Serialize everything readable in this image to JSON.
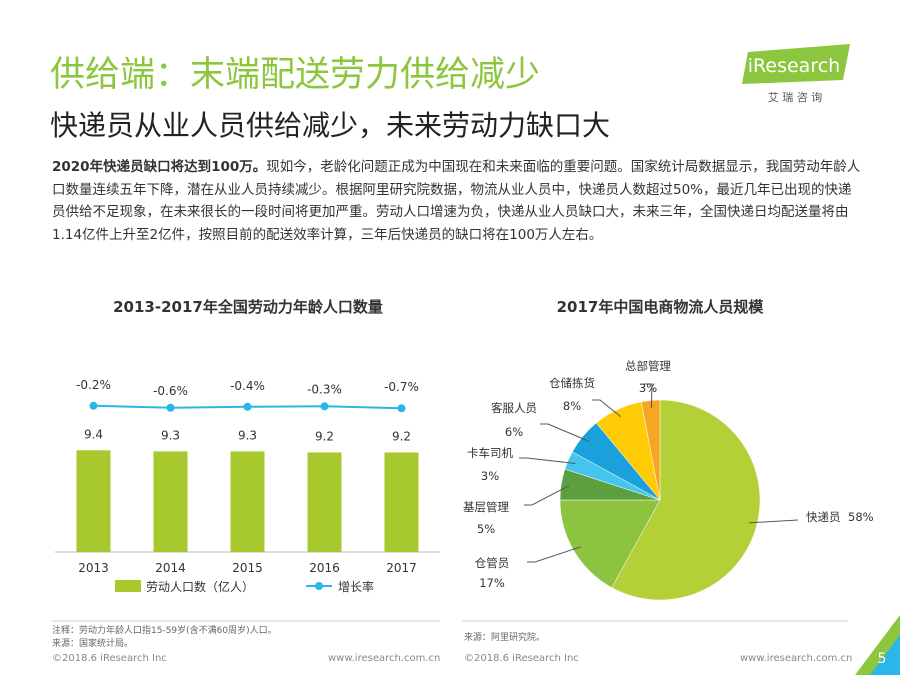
{
  "header": {
    "title": "供给端：末端配送劳力供给减少",
    "subtitle": "快递员从业人员供给减少，未来劳动力缺口大",
    "logo": "iResearch",
    "logo_cn": "艾 瑞 咨 询"
  },
  "body": {
    "lead": "2020年快递员缺口将达到100万。",
    "text": "现如今，老龄化问题正成为中国现在和未来面临的重要问题。国家统计局数据显示，我国劳动年龄人口数量连续五年下降，潜在从业人员持续减少。根据阿里研究院数据，物流从业人员中，快递员人数超过50%，最近几年已出现的快递员供给不足现象，在未来很长的一段时间将更加严重。劳动人口增速为负，快递从业人员缺口大，未来三年，全国快递日均配送量将由1.14亿件上升至2亿件，按照目前的配送效率计算，三年后快递员的缺口将在100万人左右。"
  },
  "chart_data": [
    {
      "type": "bar",
      "title": "2013-2017年全国劳动力年龄人口数量",
      "categories": [
        "2013",
        "2014",
        "2015",
        "2016",
        "2017"
      ],
      "ylim": [
        0,
        11
      ],
      "y2lim": [
        -30,
        2
      ],
      "series": [
        {
          "name": "劳动人口数（亿人）",
          "color": "#a8c92d",
          "values": [
            9.4,
            9.3,
            9.3,
            9.2,
            9.2
          ]
        },
        {
          "name": "增长率",
          "color": "#2bb6e8",
          "axis": "y2",
          "type": "line",
          "values": [
            -0.2,
            -0.6,
            -0.4,
            -0.3,
            -0.7
          ],
          "value_labels": [
            "-0.2%",
            "-0.6%",
            "-0.4%",
            "-0.3%",
            "-0.7%"
          ]
        }
      ]
    },
    {
      "type": "pie",
      "title": "2017年中国电商物流人员规模",
      "categories": [
        "快递员",
        "仓管员",
        "基层管理",
        "卡车司机",
        "客服人员",
        "仓储拣货",
        "总部管理"
      ],
      "values": [
        58,
        17,
        5,
        3,
        6,
        8,
        3
      ],
      "value_labels": [
        "58%",
        "17%",
        "5%",
        "3%",
        "6%",
        "8%",
        "3%"
      ],
      "colors": [
        "#b3d137",
        "#8cc43f",
        "#5c9f3e",
        "#45c4ee",
        "#1aa1dc",
        "#ffcb05",
        "#f6a623"
      ]
    }
  ],
  "footer": {
    "note": "注释：劳动力年龄人口指15-59岁(含不满60周岁)人口。",
    "source_left": "来源：国家统计局。",
    "source_right": "来源：阿里研究院。",
    "copyright_left": "©2018.6 iResearch Inc",
    "url_left": "www.iresearch.com.cn",
    "copyright_right": "©2018.6 iResearch Inc",
    "url_right": "www.iresearch.com.cn",
    "page": "5"
  }
}
